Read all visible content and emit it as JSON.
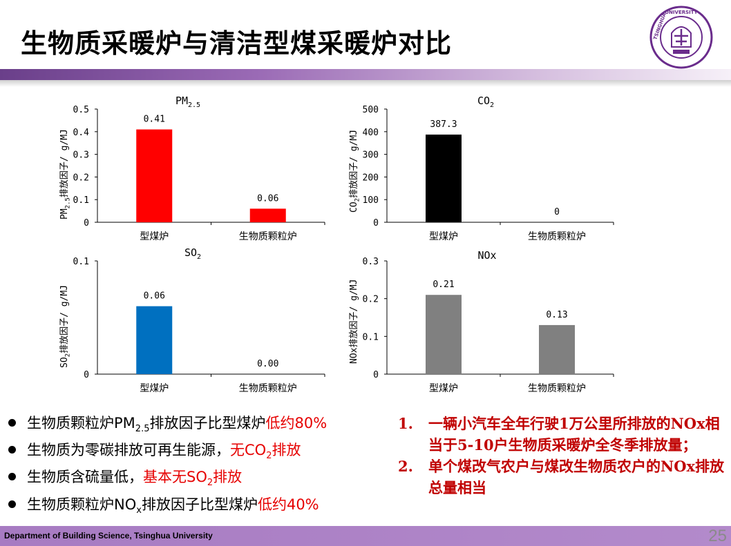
{
  "slide": {
    "title": "生物质采暖炉与清洁型煤采暖炉对比",
    "footer": "Department of Building Science, Tsinghua University",
    "page_number": "25"
  },
  "logo": {
    "university": "TSINGHUA UNIVERSITY",
    "year": "1911"
  },
  "colors": {
    "pm25": "#ff0000",
    "co2": "#000000",
    "so2": "#0070c0",
    "nox": "#808080",
    "accent_red": "#e60000"
  },
  "chart_data": [
    {
      "id": "pm25",
      "type": "bar",
      "title": "PM2.5",
      "ylabel": "PM2.5排放因子/ g/MJ",
      "categories": [
        "型煤炉",
        "生物质颗粒炉"
      ],
      "values": [
        0.41,
        0.06
      ],
      "value_labels": [
        "0.41",
        "0.06"
      ],
      "ylim": [
        0,
        0.5
      ],
      "yticks": [
        "0",
        "0.1",
        "0.2",
        "0.3",
        "0.4",
        "0.5"
      ]
    },
    {
      "id": "co2",
      "type": "bar",
      "title": "CO2",
      "ylabel": "CO2排放因子/ g/MJ",
      "categories": [
        "型煤炉",
        "生物质颗粒炉"
      ],
      "values": [
        387.3,
        0
      ],
      "value_labels": [
        "387.3",
        "0"
      ],
      "ylim": [
        0,
        500
      ],
      "yticks": [
        "0",
        "100",
        "200",
        "300",
        "400",
        "500"
      ]
    },
    {
      "id": "so2",
      "type": "bar",
      "title": "SO2",
      "ylabel": "SO2排放因子/ g/MJ",
      "categories": [
        "型煤炉",
        "生物质颗粒炉"
      ],
      "values": [
        0.06,
        0.0
      ],
      "value_labels": [
        "0.06",
        "0.00"
      ],
      "ylim": [
        0,
        0.1
      ],
      "yticks": [
        "0",
        "0.1"
      ]
    },
    {
      "id": "nox",
      "type": "bar",
      "title": "NOx",
      "ylabel": "NOx排放因子/ g/MJ",
      "categories": [
        "型煤炉",
        "生物质颗粒炉"
      ],
      "values": [
        0.21,
        0.13
      ],
      "value_labels": [
        "0.21",
        "0.13"
      ],
      "ylim": [
        0,
        0.3
      ],
      "yticks": [
        "0",
        "0.1",
        "0.2",
        "0.3"
      ]
    }
  ],
  "bullets": [
    {
      "pre": "生物质颗粒炉PM",
      "sub": "2.5",
      "mid": "排放因子比型煤炉",
      "red": "低约80%"
    },
    {
      "pre": "生物质为零碳排放可再生能源，",
      "sub": "",
      "mid": "",
      "red": "无CO",
      "red_sub": "2",
      "red_post": "排放"
    },
    {
      "pre": "生物质含硫量低，",
      "sub": "",
      "mid": "",
      "red": "基本无SO",
      "red_sub": "2",
      "red_post": "排放"
    },
    {
      "pre": "生物质颗粒炉NO",
      "sub": "x",
      "mid": "排放因子比型煤炉",
      "red": "低约40%"
    }
  ],
  "notes": [
    {
      "num": "1.",
      "text": "一辆小汽车全年行驶1万公里所排放的NOx相当于5-10户生物质采暖炉全冬季排放量；"
    },
    {
      "num": "2.",
      "text": "单个煤改气农户与煤改生物质农户的NOx排放总量相当"
    }
  ]
}
